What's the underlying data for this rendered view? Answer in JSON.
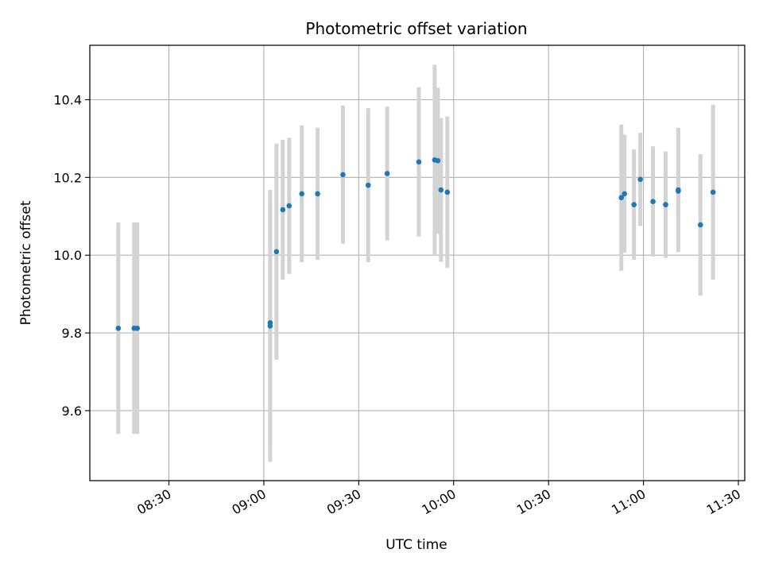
{
  "chart_data": {
    "type": "scatter",
    "title": "Photometric offset variation",
    "xlabel": "UTC time",
    "ylabel": "Photometric offset",
    "xlim": [
      "08:05",
      "11:32"
    ],
    "ylim": [
      9.42,
      10.54
    ],
    "x_ticks": [
      "08:30",
      "09:00",
      "09:30",
      "10:00",
      "10:30",
      "11:00",
      "11:30"
    ],
    "y_ticks": [
      9.6,
      9.8,
      10.0,
      10.2,
      10.4
    ],
    "grid": true,
    "colors": {
      "points": "#1f77b4",
      "error_bars": "#d3d3d3",
      "grid": "#b0b0b0"
    },
    "points": [
      {
        "x": "08:14",
        "y": 9.812,
        "err": 0.272
      },
      {
        "x": "08:19",
        "y": 9.812,
        "err": 0.272
      },
      {
        "x": "08:20",
        "y": 9.812,
        "err": 0.272
      },
      {
        "x": "09:02",
        "y": 9.818,
        "err": 0.35
      },
      {
        "x": "09:02",
        "y": 9.826,
        "err": 0.315
      },
      {
        "x": "09:04",
        "y": 10.009,
        "err": 0.278
      },
      {
        "x": "09:06",
        "y": 10.117,
        "err": 0.18
      },
      {
        "x": "09:08",
        "y": 10.127,
        "err": 0.175
      },
      {
        "x": "09:12",
        "y": 10.158,
        "err": 0.176
      },
      {
        "x": "09:17",
        "y": 10.158,
        "err": 0.17
      },
      {
        "x": "09:25",
        "y": 10.207,
        "err": 0.178
      },
      {
        "x": "09:33",
        "y": 10.18,
        "err": 0.198
      },
      {
        "x": "09:39",
        "y": 10.21,
        "err": 0.172
      },
      {
        "x": "09:49",
        "y": 10.24,
        "err": 0.192
      },
      {
        "x": "09:54",
        "y": 10.245,
        "err": 0.245
      },
      {
        "x": "09:55",
        "y": 10.243,
        "err": 0.188
      },
      {
        "x": "09:56",
        "y": 10.168,
        "err": 0.185
      },
      {
        "x": "09:58",
        "y": 10.162,
        "err": 0.195
      },
      {
        "x": "10:53",
        "y": 10.148,
        "err": 0.188
      },
      {
        "x": "10:54",
        "y": 10.158,
        "err": 0.152
      },
      {
        "x": "10:57",
        "y": 10.13,
        "err": 0.142
      },
      {
        "x": "10:59",
        "y": 10.195,
        "err": 0.12
      },
      {
        "x": "11:03",
        "y": 10.138,
        "err": 0.142
      },
      {
        "x": "11:07",
        "y": 10.13,
        "err": 0.137
      },
      {
        "x": "11:11",
        "y": 10.165,
        "err": 0.147
      },
      {
        "x": "11:11",
        "y": 10.168,
        "err": 0.16
      },
      {
        "x": "11:18",
        "y": 10.078,
        "err": 0.182
      },
      {
        "x": "11:22",
        "y": 10.162,
        "err": 0.225
      }
    ]
  }
}
